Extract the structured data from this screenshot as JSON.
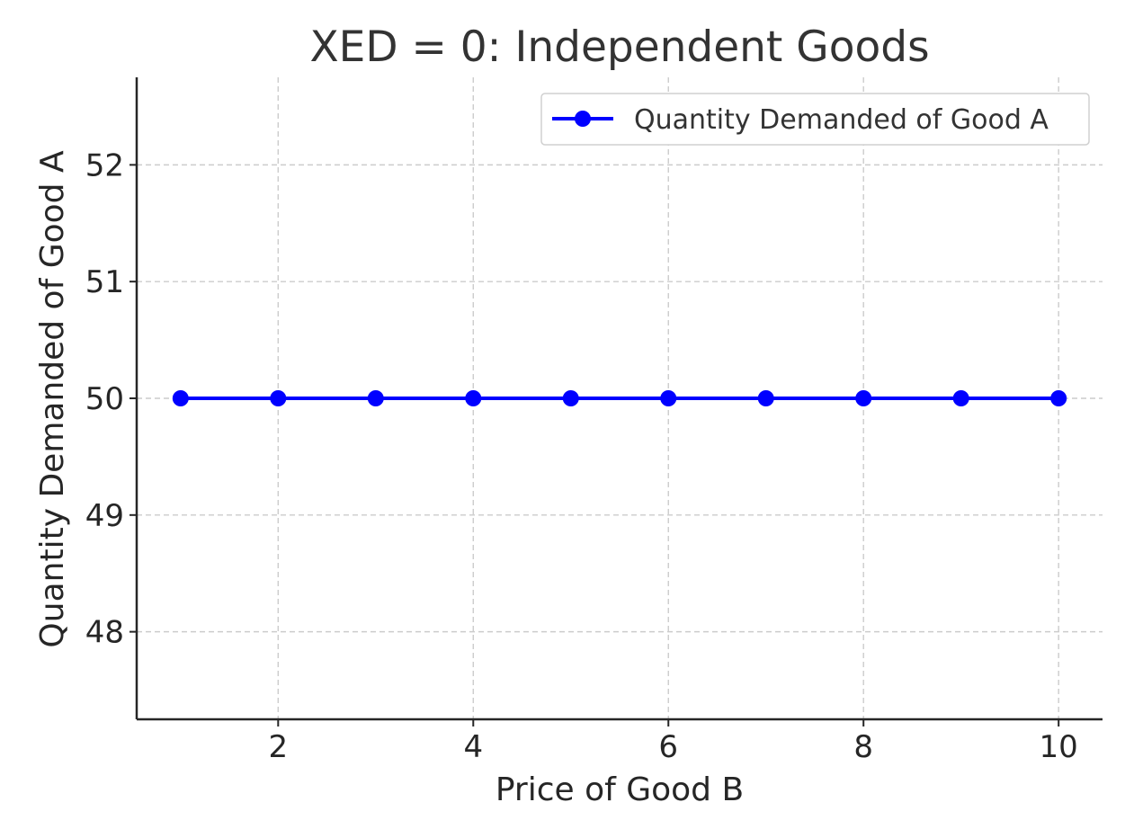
{
  "chart_data": {
    "type": "line",
    "title": "XED = 0: Independent Goods",
    "xlabel": "Price of Good B",
    "ylabel": "Quantity Demanded of Good A",
    "x": [
      1,
      2,
      3,
      4,
      5,
      6,
      7,
      8,
      9,
      10
    ],
    "series": [
      {
        "name": "Quantity Demanded of Good A",
        "values": [
          50,
          50,
          50,
          50,
          50,
          50,
          50,
          50,
          50,
          50
        ],
        "color": "#0000ff",
        "marker": "circle"
      }
    ],
    "xlim": [
      0.55,
      10.45
    ],
    "ylim": [
      47.25,
      52.75
    ],
    "xticks": [
      2,
      4,
      6,
      8,
      10
    ],
    "yticks": [
      48,
      49,
      50,
      51,
      52
    ],
    "grid": true,
    "legend_position": "top-right"
  }
}
